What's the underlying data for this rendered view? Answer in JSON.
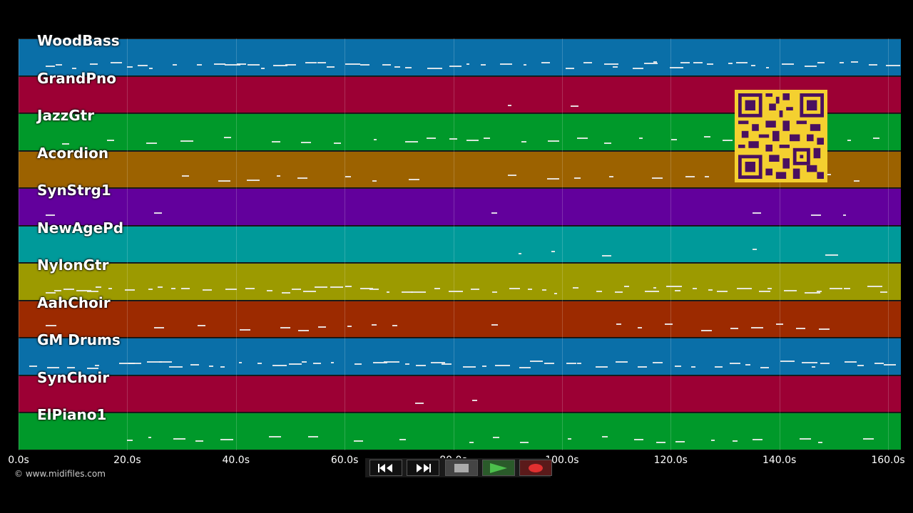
{
  "tracks": [
    {
      "name": "WoodBass",
      "color": "#0a6fa8"
    },
    {
      "name": "GrandPno",
      "color": "#9c0034"
    },
    {
      "name": "JazzGtr",
      "color": "#00992a"
    },
    {
      "name": "Acordion",
      "color": "#9c6200"
    },
    {
      "name": "SynStrg1",
      "color": "#62009c"
    },
    {
      "name": "NewAgePd",
      "color": "#009a9a"
    },
    {
      "name": "NylonGtr",
      "color": "#9c9a00"
    },
    {
      "name": "AahChoir",
      "color": "#9c2a00"
    },
    {
      "name": "GM Drums",
      "color": "#0a6fa8"
    },
    {
      "name": "SynChoir",
      "color": "#9c0034"
    },
    {
      "name": "ElPiano1",
      "color": "#00992a"
    }
  ],
  "timeline": {
    "ticks": [
      "0.0s",
      "20.0s",
      "40.0s",
      "60.0s",
      "80.0s",
      "100.0s",
      "120.0s",
      "140.0s",
      "160.0s"
    ],
    "duration_s": 160
  },
  "credit": "© www.midifiles.com",
  "transport": {
    "rewind_icon": "rewind-icon",
    "forward_icon": "fast-forward-icon",
    "stop_icon": "stop-icon",
    "play_icon": "play-icon",
    "record_icon": "record-icon"
  },
  "notes": [
    {
      "track": 0,
      "segments": [
        [
          5,
          160
        ]
      ],
      "density": "dense"
    },
    {
      "track": 1,
      "segments": [
        [
          90,
          108
        ]
      ],
      "density": "sparse"
    },
    {
      "track": 2,
      "segments": [
        [
          8,
          160
        ]
      ],
      "density": "medium"
    },
    {
      "track": 3,
      "segments": [
        [
          30,
          72
        ],
        [
          90,
          160
        ]
      ],
      "density": "medium"
    },
    {
      "track": 4,
      "segments": [
        [
          5,
          10
        ],
        [
          25,
          30
        ],
        [
          87,
          92
        ],
        [
          135,
          160
        ]
      ],
      "density": "sparse"
    },
    {
      "track": 5,
      "segments": [
        [
          92,
          110
        ],
        [
          135,
          160
        ]
      ],
      "density": "sparse"
    },
    {
      "track": 6,
      "segments": [
        [
          5,
          160
        ]
      ],
      "density": "dense"
    },
    {
      "track": 7,
      "segments": [
        [
          5,
          10
        ],
        [
          25,
          70
        ],
        [
          87,
          92
        ],
        [
          110,
          152
        ]
      ],
      "density": "medium"
    },
    {
      "track": 8,
      "segments": [
        [
          2,
          160
        ]
      ],
      "density": "dense"
    },
    {
      "track": 9,
      "segments": [
        [
          73,
          87
        ]
      ],
      "density": "sparse"
    },
    {
      "track": 10,
      "segments": [
        [
          20,
          72
        ],
        [
          83,
          160
        ]
      ],
      "density": "medium"
    }
  ]
}
